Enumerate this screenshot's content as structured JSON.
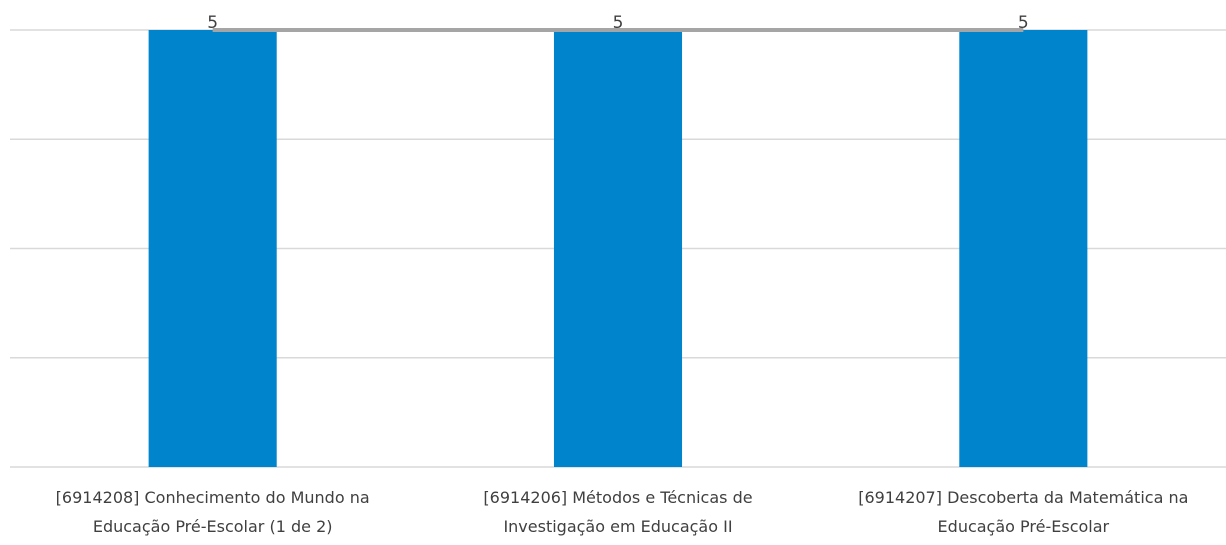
{
  "chart_data": {
    "type": "bar",
    "categories": [
      "[6914208] Conhecimento do Mundo na Educação Pré-Escolar (1 de 2)",
      "[6914206] Métodos e Técnicas de Investigação em Educação II",
      "[6914207] Descoberta da Matemática na Educação Pré-Escolar"
    ],
    "series": [
      {
        "type": "bar",
        "color": "#0085cc",
        "values": [
          5,
          5,
          5
        ]
      },
      {
        "type": "line",
        "color": "#a5a5a5",
        "values": [
          5,
          5,
          5
        ]
      }
    ],
    "ylim": [
      0,
      5
    ],
    "yticks": [
      0,
      1.25,
      2.5,
      3.75,
      5
    ],
    "grid": true
  }
}
